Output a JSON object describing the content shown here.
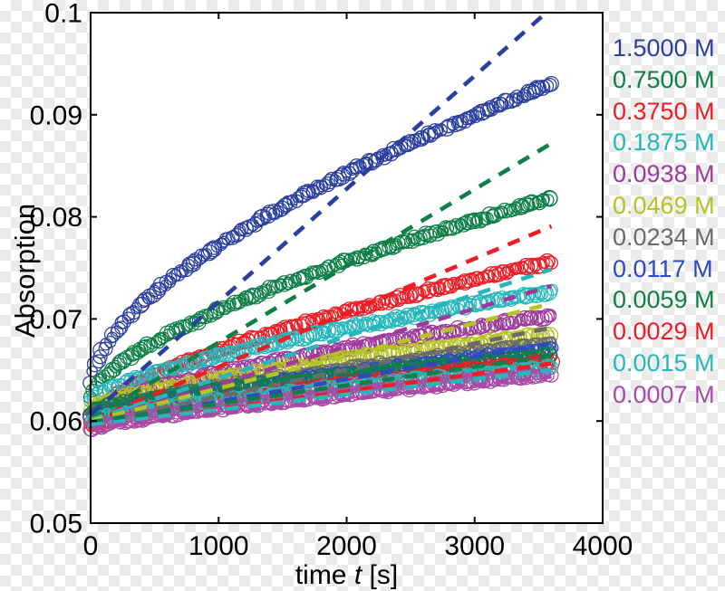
{
  "chart_data": {
    "type": "scatter",
    "title": "",
    "xlabel": "time t [s]",
    "xlabel_parts": {
      "prefix": "time ",
      "italic": "t",
      "suffix": " [s]"
    },
    "ylabel": "Absorption",
    "xlim": [
      0,
      4000
    ],
    "ylim": [
      0.05,
      0.1
    ],
    "x_ticks": [
      0,
      1000,
      2000,
      3000,
      4000
    ],
    "x_tick_labels": [
      "0",
      "1000",
      "2000",
      "3000",
      "4000"
    ],
    "y_ticks": [
      0.05,
      0.06,
      0.07,
      0.08,
      0.09,
      0.1
    ],
    "y_tick_labels": [
      "0.05",
      "0.06",
      "0.07",
      "0.08",
      "0.09",
      "0.1"
    ],
    "grid": false,
    "legend_position": "right-outside",
    "marker": "open-circle",
    "fit_line_style": "dashed",
    "t_range": [
      0,
      3600
    ],
    "series": [
      {
        "label": "1.5000 M",
        "color": "#2b3f9e",
        "anchor_points": {
          "t": [
            0,
            900,
            1800,
            2700,
            3600
          ],
          "A": [
            0.0636,
            0.0762,
            0.0827,
            0.088,
            0.093
          ]
        },
        "model": {
          "type": "power",
          "a0": 0.0636,
          "a_end": 0.093,
          "exponent": 0.6
        },
        "fit_line": {
          "intercept": 0.0606,
          "slope_per_s": 1.107e-05
        }
      },
      {
        "label": "0.7500 M",
        "color": "#0e7f46",
        "anchor_points": {
          "t": [
            0,
            900,
            1800,
            2700,
            3600
          ],
          "A": [
            0.0624,
            0.0703,
            0.0748,
            0.0785,
            0.0818
          ]
        },
        "model": {
          "type": "power",
          "a0": 0.0624,
          "a_end": 0.0818,
          "exponent": 0.65
        },
        "fit_line": {
          "intercept": 0.0602,
          "slope_per_s": 7.5e-06
        }
      },
      {
        "label": "0.3750 M",
        "color": "#ee1c25",
        "anchor_points": {
          "t": [
            0,
            900,
            1800,
            2700,
            3600
          ],
          "A": [
            0.0602,
            0.0665,
            0.07,
            0.073,
            0.0756
          ]
        },
        "model": {
          "type": "power",
          "a0": 0.0602,
          "a_end": 0.0756,
          "exponent": 0.65
        },
        "fit_line": {
          "intercept": 0.06,
          "slope_per_s": 5.3e-06
        }
      },
      {
        "label": "0.1875 M",
        "color": "#25b7bc",
        "anchor_points": {
          "t": [
            0,
            900,
            1800,
            2700,
            3600
          ],
          "A": [
            0.062,
            0.0661,
            0.0686,
            0.0707,
            0.0727
          ]
        },
        "model": {
          "type": "power",
          "a0": 0.062,
          "a_end": 0.0727,
          "exponent": 0.7
        },
        "fit_line": {
          "intercept": 0.0601,
          "slope_per_s": 4.1e-06
        }
      },
      {
        "label": "0.0938 M",
        "color": "#9e3a9b",
        "anchor_points": {
          "t": [
            0,
            900,
            1800,
            2700,
            3600
          ],
          "A": [
            0.0608,
            0.0644,
            0.0666,
            0.0686,
            0.0703
          ]
        },
        "model": {
          "type": "power",
          "a0": 0.0608,
          "a_end": 0.0703,
          "exponent": 0.7
        },
        "fit_line": {
          "intercept": 0.0599,
          "slope_per_s": 3.7e-06
        }
      },
      {
        "label": "0.0469 M",
        "color": "#b5c425",
        "anchor_points": {
          "t": [
            0,
            900,
            1800,
            2700,
            3600
          ],
          "A": [
            0.0612,
            0.064,
            0.0657,
            0.0672,
            0.0685
          ]
        },
        "model": {
          "type": "power",
          "a0": 0.0612,
          "a_end": 0.0685,
          "exponent": 0.7
        },
        "fit_line": {
          "intercept": 0.06,
          "slope_per_s": 3.2e-06
        }
      },
      {
        "label": "0.0234 M",
        "color": "#6b6b6b",
        "anchor_points": {
          "t": [
            0,
            900,
            1800,
            2700,
            3600
          ],
          "A": [
            0.0606,
            0.0631,
            0.0648,
            0.0662,
            0.0676
          ]
        },
        "model": {
          "type": "power",
          "a0": 0.0606,
          "a_end": 0.0676,
          "exponent": 0.75
        },
        "fit_line": {
          "intercept": 0.0598,
          "slope_per_s": 2.6e-06
        }
      },
      {
        "label": "0.0117 M",
        "color": "#2e4abf",
        "anchor_points": {
          "t": [
            0,
            900,
            1800,
            2700,
            3600
          ],
          "A": [
            0.0604,
            0.0627,
            0.0643,
            0.0657,
            0.067
          ]
        },
        "model": {
          "type": "power",
          "a0": 0.0604,
          "a_end": 0.067,
          "exponent": 0.75
        },
        "fit_line": {
          "intercept": 0.0597,
          "slope_per_s": 2.2e-06
        }
      },
      {
        "label": "0.0059 M",
        "color": "#0e7f46",
        "anchor_points": {
          "t": [
            0,
            900,
            1800,
            2700,
            3600
          ],
          "A": [
            0.061,
            0.0629,
            0.0642,
            0.0654,
            0.0664
          ]
        },
        "model": {
          "type": "power",
          "a0": 0.061,
          "a_end": 0.0664,
          "exponent": 0.75
        },
        "fit_line": {
          "intercept": 0.0599,
          "slope_per_s": 1.8e-06
        }
      },
      {
        "label": "0.0029 M",
        "color": "#ee1c25",
        "anchor_points": {
          "t": [
            0,
            900,
            1800,
            2700,
            3600
          ],
          "A": [
            0.0596,
            0.0618,
            0.0633,
            0.0646,
            0.0658
          ]
        },
        "model": {
          "type": "power",
          "a0": 0.0596,
          "a_end": 0.0658,
          "exponent": 0.75
        },
        "fit_line": {
          "intercept": 0.0595,
          "slope_per_s": 1.7e-06
        }
      },
      {
        "label": "0.0015 M",
        "color": "#25b7bc",
        "anchor_points": {
          "t": [
            0,
            900,
            1800,
            2700,
            3600
          ],
          "A": [
            0.06,
            0.0618,
            0.0631,
            0.0642,
            0.0652
          ]
        },
        "model": {
          "type": "power",
          "a0": 0.06,
          "a_end": 0.0652,
          "exponent": 0.75
        },
        "fit_line": {
          "intercept": 0.0596,
          "slope_per_s": 1.5e-06
        }
      },
      {
        "label": "0.0007 M",
        "color": "#a84ba8",
        "anchor_points": {
          "t": [
            0,
            900,
            1800,
            2700,
            3600
          ],
          "A": [
            0.0592,
            0.0611,
            0.0624,
            0.0636,
            0.0646
          ]
        },
        "model": {
          "type": "power",
          "a0": 0.0592,
          "a_end": 0.0646,
          "exponent": 0.75
        },
        "fit_line": {
          "intercept": 0.0593,
          "slope_per_s": 1.4e-06
        }
      }
    ],
    "style": {
      "axis_color": "#000000",
      "plot_bg": "#ffffff",
      "checker_light": "#ffffff",
      "checker_dark": "#ebebeb"
    }
  }
}
